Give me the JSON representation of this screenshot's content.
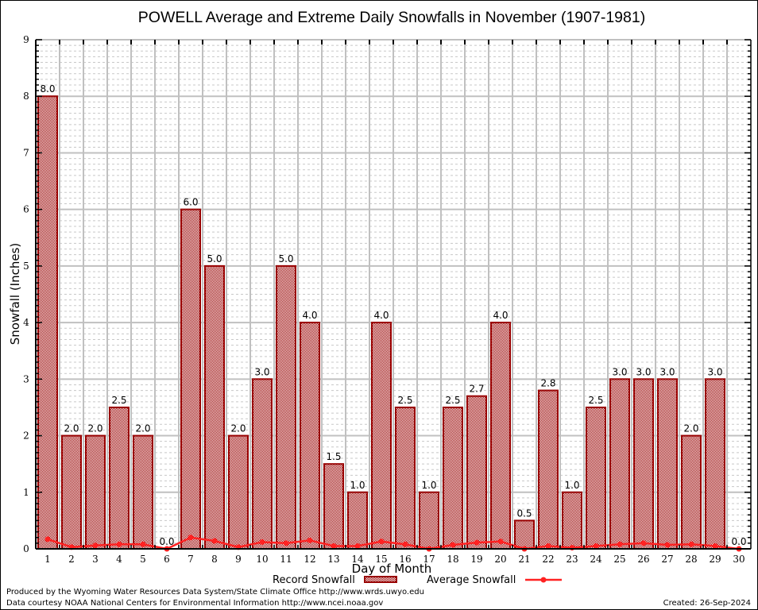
{
  "chart_data": {
    "type": "bar",
    "title": "POWELL Average and Extreme Daily Snowfalls in November (1907-1981)",
    "xlabel": "Day of Month",
    "ylabel": "Snowfall (Inches)",
    "ylim": [
      0,
      9
    ],
    "yticks": [
      0,
      1,
      2,
      3,
      4,
      5,
      6,
      7,
      8,
      9
    ],
    "minor_ytick_step": 0.1,
    "grid": true,
    "categories": [
      "1",
      "2",
      "3",
      "4",
      "5",
      "6",
      "7",
      "8",
      "9",
      "10",
      "11",
      "12",
      "13",
      "14",
      "15",
      "16",
      "17",
      "18",
      "19",
      "20",
      "21",
      "22",
      "23",
      "24",
      "25",
      "26",
      "27",
      "28",
      "29",
      "30"
    ],
    "series": [
      {
        "name": "Record Snowfall",
        "type": "bar",
        "values": [
          8.0,
          2.0,
          2.0,
          2.5,
          2.0,
          0.0,
          6.0,
          5.0,
          2.0,
          3.0,
          5.0,
          4.0,
          1.5,
          1.0,
          4.0,
          2.5,
          1.0,
          2.5,
          2.7,
          4.0,
          0.5,
          2.8,
          1.0,
          2.5,
          3.0,
          3.0,
          3.0,
          2.0,
          3.0,
          0.0
        ],
        "labels": [
          "8.0",
          "2.0",
          "2.0",
          "2.5",
          "2.0",
          "0.0",
          "6.0",
          "5.0",
          "2.0",
          "3.0",
          "5.0",
          "4.0",
          "1.5",
          "1.0",
          "4.0",
          "2.5",
          "1.0",
          "2.5",
          "2.7",
          "4.0",
          "0.5",
          "2.8",
          "1.0",
          "2.5",
          "3.0",
          "3.0",
          "3.0",
          "2.0",
          "3.0",
          "0.0"
        ],
        "color": "#990000"
      },
      {
        "name": "Average Snowfall",
        "type": "line",
        "values": [
          0.17,
          0.03,
          0.06,
          0.08,
          0.08,
          0.0,
          0.2,
          0.14,
          0.03,
          0.12,
          0.1,
          0.15,
          0.05,
          0.05,
          0.13,
          0.08,
          0.0,
          0.07,
          0.11,
          0.13,
          0.0,
          0.05,
          0.02,
          0.05,
          0.08,
          0.1,
          0.07,
          0.08,
          0.05,
          0.0
        ],
        "color": "#ff2222"
      }
    ],
    "legend": {
      "position": "bottom",
      "entries": [
        "Record Snowfall",
        "Average Snowfall"
      ]
    },
    "colors": {
      "record": "#990000",
      "average": "#ff2222",
      "grid_major": "#c0c0c0",
      "grid_minor": "#c8c8c8"
    }
  },
  "footer": {
    "produced_by": "Produced by the Wyoming Water Resources Data System/State Climate Office http://www.wrds.uwyo.edu",
    "data_courtesy": "Data courtesy NOAA National Centers for Environmental Information http://www.ncei.noaa.gov",
    "created": "Created: 26-Sep-2024"
  }
}
